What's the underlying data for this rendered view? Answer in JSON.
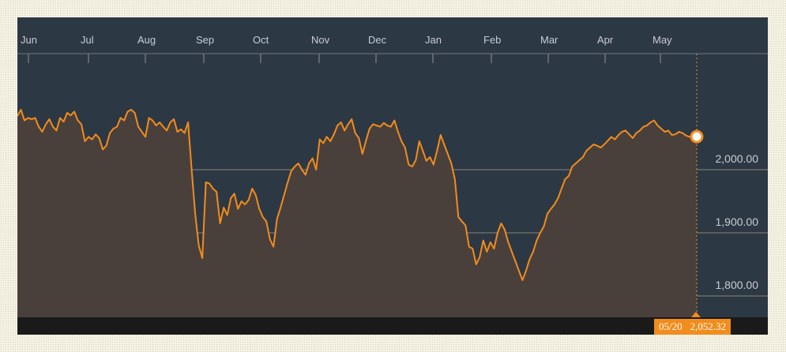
{
  "chart_data": {
    "type": "area",
    "x_axis_months": [
      "Jun",
      "Jul",
      "Aug",
      "Sep",
      "Oct",
      "Nov",
      "Dec",
      "Jan",
      "Feb",
      "Mar",
      "Apr",
      "May"
    ],
    "y_ticks": [
      "2,000.00",
      "1,900.00",
      "1,800.00"
    ],
    "y_tick_values": [
      2000,
      1900,
      1800
    ],
    "ylim": [
      1770,
      2175
    ],
    "grid": true,
    "series_color": "#f28c1c",
    "values": [
      2085,
      2095,
      2078,
      2082,
      2080,
      2082,
      2068,
      2060,
      2072,
      2080,
      2068,
      2062,
      2082,
      2076,
      2090,
      2086,
      2092,
      2078,
      2072,
      2045,
      2052,
      2048,
      2056,
      2050,
      2032,
      2038,
      2058,
      2065,
      2068,
      2082,
      2078,
      2092,
      2095,
      2090,
      2068,
      2060,
      2052,
      2082,
      2078,
      2070,
      2075,
      2068,
      2062,
      2075,
      2080,
      2060,
      2064,
      2058,
      2075,
      2000,
      1930,
      1880,
      1860,
      1980,
      1978,
      1970,
      1965,
      1915,
      1940,
      1928,
      1955,
      1962,
      1938,
      1950,
      1945,
      1952,
      1970,
      1960,
      1938,
      1925,
      1918,
      1890,
      1878,
      1922,
      1940,
      1960,
      1980,
      1998,
      2005,
      2010,
      2000,
      1992,
      2010,
      2018,
      2000,
      2048,
      2042,
      2052,
      2045,
      2056,
      2070,
      2075,
      2062,
      2072,
      2080,
      2058,
      2050,
      2025,
      2046,
      2065,
      2072,
      2070,
      2068,
      2074,
      2070,
      2068,
      2078,
      2060,
      2045,
      2035,
      2008,
      2005,
      2015,
      2045,
      2030,
      2014,
      2020,
      2008,
      2030,
      2055,
      2040,
      2025,
      2010,
      1985,
      1925,
      1918,
      1912,
      1878,
      1875,
      1850,
      1862,
      1888,
      1870,
      1885,
      1875,
      1900,
      1915,
      1905,
      1885,
      1870,
      1855,
      1840,
      1825,
      1840,
      1858,
      1870,
      1888,
      1900,
      1910,
      1930,
      1938,
      1945,
      1955,
      1970,
      1985,
      1990,
      2005,
      2010,
      2015,
      2020,
      2030,
      2035,
      2040,
      2038,
      2035,
      2040,
      2046,
      2052,
      2048,
      2055,
      2060,
      2062,
      2056,
      2050,
      2058,
      2062,
      2068,
      2070,
      2075,
      2078,
      2070,
      2065,
      2060,
      2062,
      2055,
      2056,
      2060,
      2058,
      2054,
      2052,
      2056,
      2052.32
    ]
  },
  "readout": {
    "date": "05/20",
    "value": "2,052.32"
  }
}
